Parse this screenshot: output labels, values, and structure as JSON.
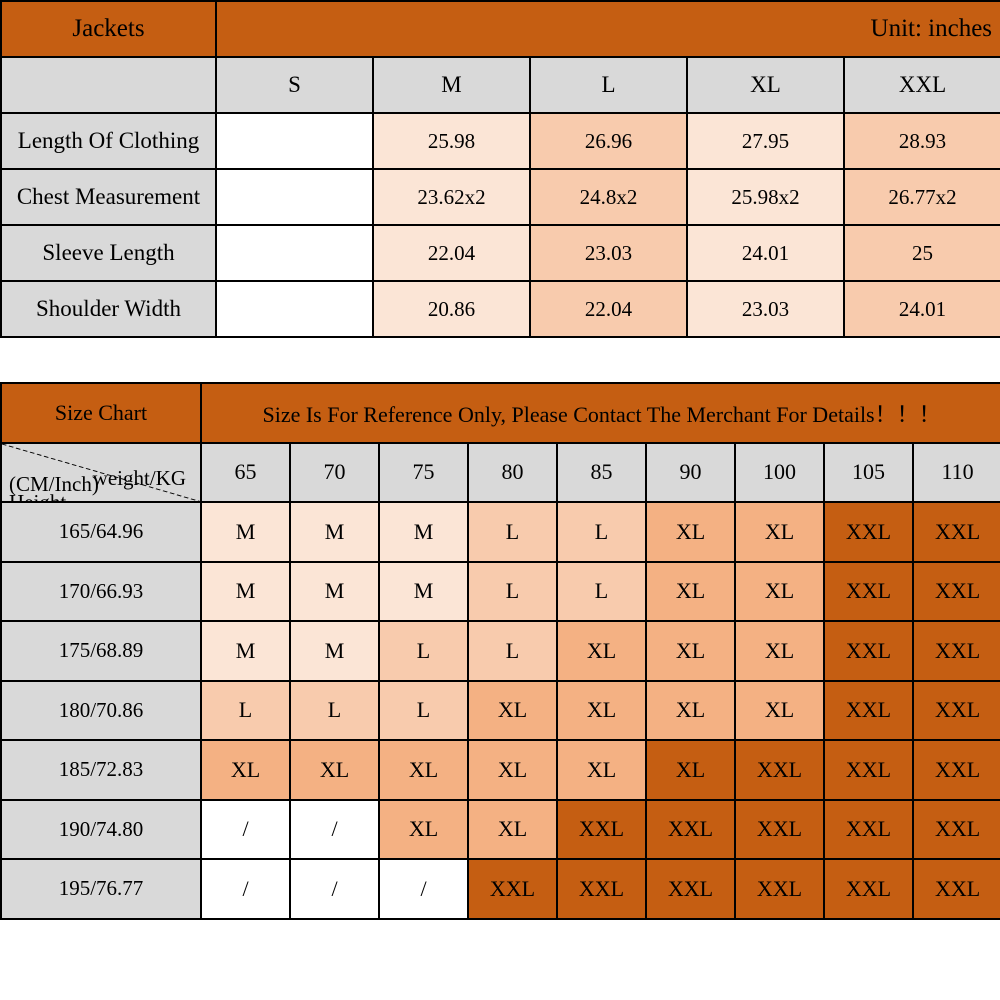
{
  "colors": {
    "orange": "#c55e12",
    "peach_light": "#fbe5d6",
    "peach_mid": "#f8cbad",
    "peach_deep": "#f4b183",
    "gray": "#d9d9d9",
    "white": "#ffffff",
    "text": "#000000"
  },
  "table1": {
    "title": "Jackets",
    "unit_label": "Unit: inches",
    "size_columns": [
      "S",
      "M",
      "L",
      "XL",
      "XXL"
    ],
    "rows": [
      {
        "label": "Length Of Clothing",
        "values": [
          "",
          "25.98",
          "26.96",
          "27.95",
          "28.93"
        ],
        "tones": [
          "white",
          "light",
          "mid",
          "light",
          "mid"
        ]
      },
      {
        "label": "Chest Measurement",
        "values": [
          "",
          "23.62x2",
          "24.8x2",
          "25.98x2",
          "26.77x2"
        ],
        "tones": [
          "white",
          "light",
          "mid",
          "light",
          "mid"
        ]
      },
      {
        "label": "Sleeve Length",
        "values": [
          "",
          "22.04",
          "23.03",
          "24.01",
          "25"
        ],
        "tones": [
          "white",
          "light",
          "mid",
          "light",
          "mid"
        ]
      },
      {
        "label": "Shoulder Width",
        "values": [
          "",
          "20.86",
          "22.04",
          "23.03",
          "24.01"
        ],
        "tones": [
          "white",
          "light",
          "mid",
          "light",
          "mid"
        ]
      }
    ]
  },
  "table2": {
    "title": "Size Chart",
    "notice": "Size Is For Reference Only, Please Contact The Merchant For Details！！！",
    "corner": {
      "top_label": "weight/KG",
      "left_label": "Height",
      "left_sublabel": "(CM/Inch)"
    },
    "weight_columns": [
      "65",
      "70",
      "75",
      "80",
      "85",
      "90",
      "100",
      "105",
      "110"
    ],
    "rows": [
      {
        "label": "165/64.96",
        "values": [
          "M",
          "M",
          "M",
          "L",
          "L",
          "XL",
          "XL",
          "XXL",
          "XXL"
        ],
        "tones": [
          "light",
          "light",
          "light",
          "mid",
          "mid",
          "deep",
          "deep",
          "dark",
          "dark"
        ]
      },
      {
        "label": "170/66.93",
        "values": [
          "M",
          "M",
          "M",
          "L",
          "L",
          "XL",
          "XL",
          "XXL",
          "XXL"
        ],
        "tones": [
          "light",
          "light",
          "light",
          "mid",
          "mid",
          "deep",
          "deep",
          "dark",
          "dark"
        ]
      },
      {
        "label": "175/68.89",
        "values": [
          "M",
          "M",
          "L",
          "L",
          "XL",
          "XL",
          "XL",
          "XXL",
          "XXL"
        ],
        "tones": [
          "light",
          "light",
          "mid",
          "mid",
          "deep",
          "deep",
          "deep",
          "dark",
          "dark"
        ]
      },
      {
        "label": "180/70.86",
        "values": [
          "L",
          "L",
          "L",
          "XL",
          "XL",
          "XL",
          "XL",
          "XXL",
          "XXL"
        ],
        "tones": [
          "mid",
          "mid",
          "mid",
          "deep",
          "deep",
          "deep",
          "deep",
          "dark",
          "dark"
        ]
      },
      {
        "label": "185/72.83",
        "values": [
          "XL",
          "XL",
          "XL",
          "XL",
          "XL",
          "XL",
          "XXL",
          "XXL",
          "XXL"
        ],
        "tones": [
          "deep",
          "deep",
          "deep",
          "deep",
          "deep",
          "dark",
          "dark",
          "dark",
          "dark"
        ]
      },
      {
        "label": "190/74.80",
        "values": [
          "/",
          "/",
          "XL",
          "XL",
          "XXL",
          "XXL",
          "XXL",
          "XXL",
          "XXL"
        ],
        "tones": [
          "white",
          "white",
          "deep",
          "deep",
          "dark",
          "dark",
          "dark",
          "dark",
          "dark"
        ]
      },
      {
        "label": "195/76.77",
        "values": [
          "/",
          "/",
          "/",
          "XXL",
          "XXL",
          "XXL",
          "XXL",
          "XXL",
          "XXL"
        ],
        "tones": [
          "white",
          "white",
          "white",
          "dark",
          "dark",
          "dark",
          "dark",
          "dark",
          "dark"
        ]
      }
    ]
  }
}
